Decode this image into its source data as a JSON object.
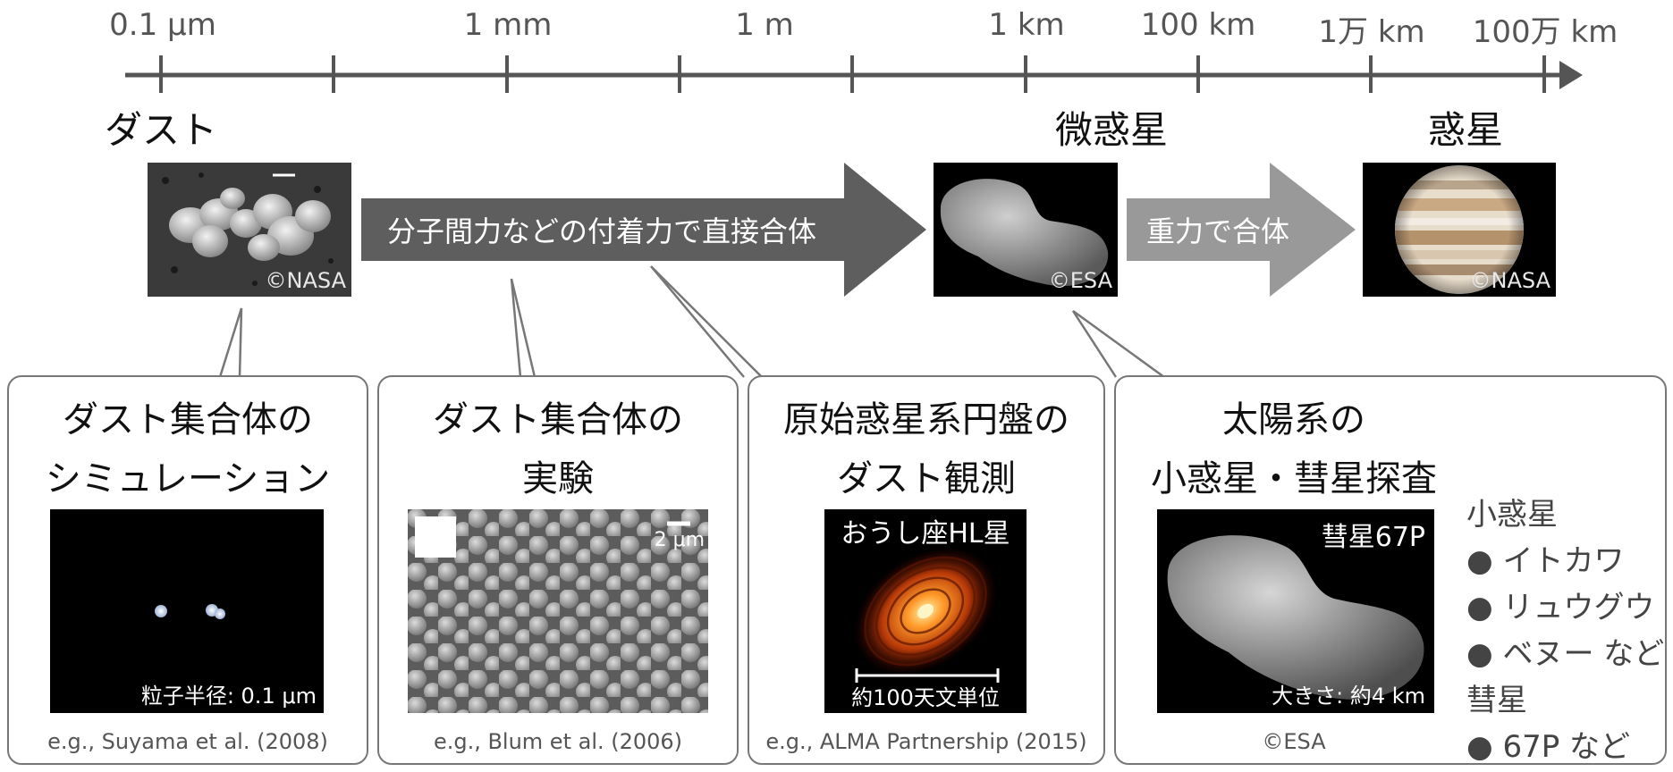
{
  "scale": {
    "ticks": [
      "0.1 μm",
      "1 mm",
      "1 m",
      "1 km",
      "100 km",
      "1万 km",
      "100万 km"
    ]
  },
  "stages": {
    "dust": "ダスト",
    "planetesimal": "微惑星",
    "planet": "惑星"
  },
  "photos": {
    "dust_credit": "©NASA",
    "comet_credit": "©ESA",
    "jupiter_credit": "©NASA"
  },
  "arrows": {
    "sticking": "分子間力などの付着力で直接合体",
    "gravity": "重力で合体"
  },
  "panels": [
    {
      "title_line1": "ダスト集合体の",
      "title_line2": "シミュレーション",
      "caption": "粒子半径: 0.1 μm",
      "ref": "e.g., Suyama et al. (2008)"
    },
    {
      "title_line1": "ダスト集合体の",
      "title_line2": "実験",
      "caption": "2 μm",
      "ref": "e.g., Blum et al. (2006)"
    },
    {
      "title_line1": "原始惑星系円盤の",
      "title_line2": "ダスト観測",
      "image_title": "おうし座HL星",
      "caption": "約100天文単位",
      "ref": "e.g., ALMA Partnership (2015)"
    },
    {
      "title_line1": "太陽系の",
      "title_line2": "小惑星・彗星探査",
      "image_title": "彗星67P",
      "caption": "大きさ: 約4 km",
      "ref": "©ESA"
    }
  ],
  "side_list": {
    "asteroid_header": "小惑星",
    "asteroids": [
      "● イトカワ",
      "● リュウグウ",
      "● ベヌー など"
    ],
    "comet_header": "彗星",
    "comets": [
      "● 67P など"
    ]
  }
}
